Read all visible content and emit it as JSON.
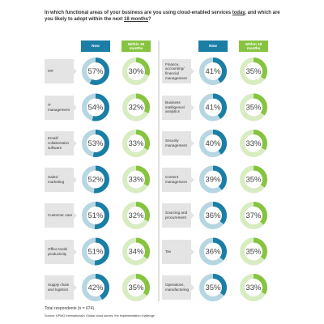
{
  "header": {
    "title_parts": [
      "In which functional areas of your business are you using cloud-enabled services ",
      "today",
      ", and which are you likely to adopt within the next ",
      "18 months",
      "?"
    ]
  },
  "chart_data": [
    {
      "type": "donut",
      "categories": [
        "HR",
        "IT management",
        "Email/ collaboration software",
        "Sales/ marketing",
        "Customer care",
        "Office tools/ productivity",
        "Supply chain and logistics"
      ],
      "series": [
        {
          "name": "Now",
          "color": "#1b7ea5",
          "values": [
            57,
            54,
            53,
            52,
            51,
            51,
            42
          ],
          "value_labels": [
            "57%",
            "54%",
            "53%",
            "52%",
            "51%",
            "51%",
            "42%"
          ]
        },
        {
          "name": "Within 18 months",
          "color": "#86c440",
          "values": [
            30,
            32,
            33,
            33,
            32,
            34,
            35
          ],
          "value_labels": [
            "30%",
            "32%",
            "33%",
            "33%",
            "32%",
            "34%",
            "35%"
          ]
        }
      ]
    },
    {
      "type": "donut",
      "categories": [
        "Finance, accounting/ financial management",
        "Business intelligence/ analytics",
        "Security management",
        "Content management",
        "Sourcing and procurement",
        "Tax",
        "Operations, manufacturing"
      ],
      "series": [
        {
          "name": "Now",
          "color": "#1b7ea5",
          "values": [
            41,
            41,
            40,
            39,
            36,
            36,
            35
          ],
          "value_labels": [
            "41%",
            "41%",
            "40%",
            "39%",
            "36%",
            "36%",
            "35%"
          ]
        },
        {
          "name": "Within 18 months",
          "color": "#86c440",
          "values": [
            35,
            35,
            33,
            35,
            37,
            35,
            33
          ],
          "value_labels": [
            "35%",
            "35%",
            "33%",
            "35%",
            "37%",
            "35%",
            "33%"
          ]
        }
      ]
    }
  ],
  "footer": {
    "respondents": "Total respondents (n = 674)",
    "source": "Source: KPMG International's Global cloud survey: the implementation challenge"
  }
}
